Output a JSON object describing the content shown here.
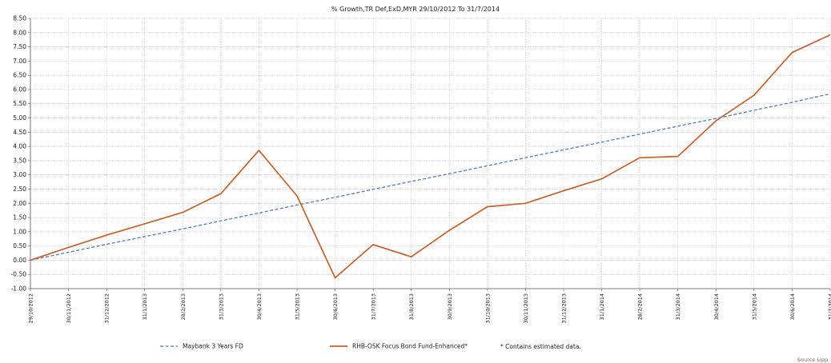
{
  "chart_data": {
    "type": "line",
    "title": "% Growth,TR Def,ExD,MYR 29/10/2012 To 31/7/2014",
    "xlabel": "",
    "ylabel": "",
    "ylim": [
      -1.0,
      8.5
    ],
    "yticks": [
      "8.50",
      "8.00",
      "7.50",
      "7.00",
      "6.50",
      "6.00",
      "5.50",
      "5.00",
      "4.50",
      "4.00",
      "3.50",
      "3.00",
      "2.50",
      "2.00",
      "1.50",
      "1.00",
      "0.50",
      "0.00",
      "-0.50",
      "-1.00"
    ],
    "categories": [
      "29/10/2012",
      "30/11/2012",
      "31/12/2012",
      "31/1/2013",
      "28/2/2013",
      "31/3/2013",
      "30/4/2013",
      "31/5/2013",
      "30/6/2013",
      "31/7/2013",
      "31/8/2013",
      "30/9/2013",
      "31/10/2013",
      "30/11/2013",
      "31/12/2013",
      "31/1/2014",
      "28/2/2014",
      "31/3/2014",
      "30/4/2014",
      "31/5/2014",
      "30/6/2014",
      "31/7/2014"
    ],
    "grid": true,
    "legend_position": "bottom",
    "series": [
      {
        "name": "Maybank 3 Years FD",
        "style": "dashed",
        "color": "#4a7cc9",
        "values": [
          0.0,
          0.28,
          0.56,
          0.83,
          1.1,
          1.38,
          1.66,
          1.94,
          2.21,
          2.49,
          2.77,
          3.04,
          3.32,
          3.6,
          3.88,
          4.15,
          4.43,
          4.71,
          4.98,
          5.27,
          5.55,
          5.85
        ]
      },
      {
        "name": "RHB-OSK Focus Bond Fund-Enhanced*",
        "style": "solid",
        "color": "#c8602a",
        "values": [
          0.0,
          0.45,
          0.88,
          1.28,
          1.68,
          2.34,
          3.86,
          2.26,
          -0.62,
          0.55,
          0.12,
          1.05,
          1.88,
          2.0,
          2.44,
          2.86,
          3.6,
          3.65,
          4.9,
          5.8,
          7.3,
          7.92
        ]
      }
    ],
    "notes": "*  Contains estimated data.",
    "source": "Source Lipp"
  }
}
